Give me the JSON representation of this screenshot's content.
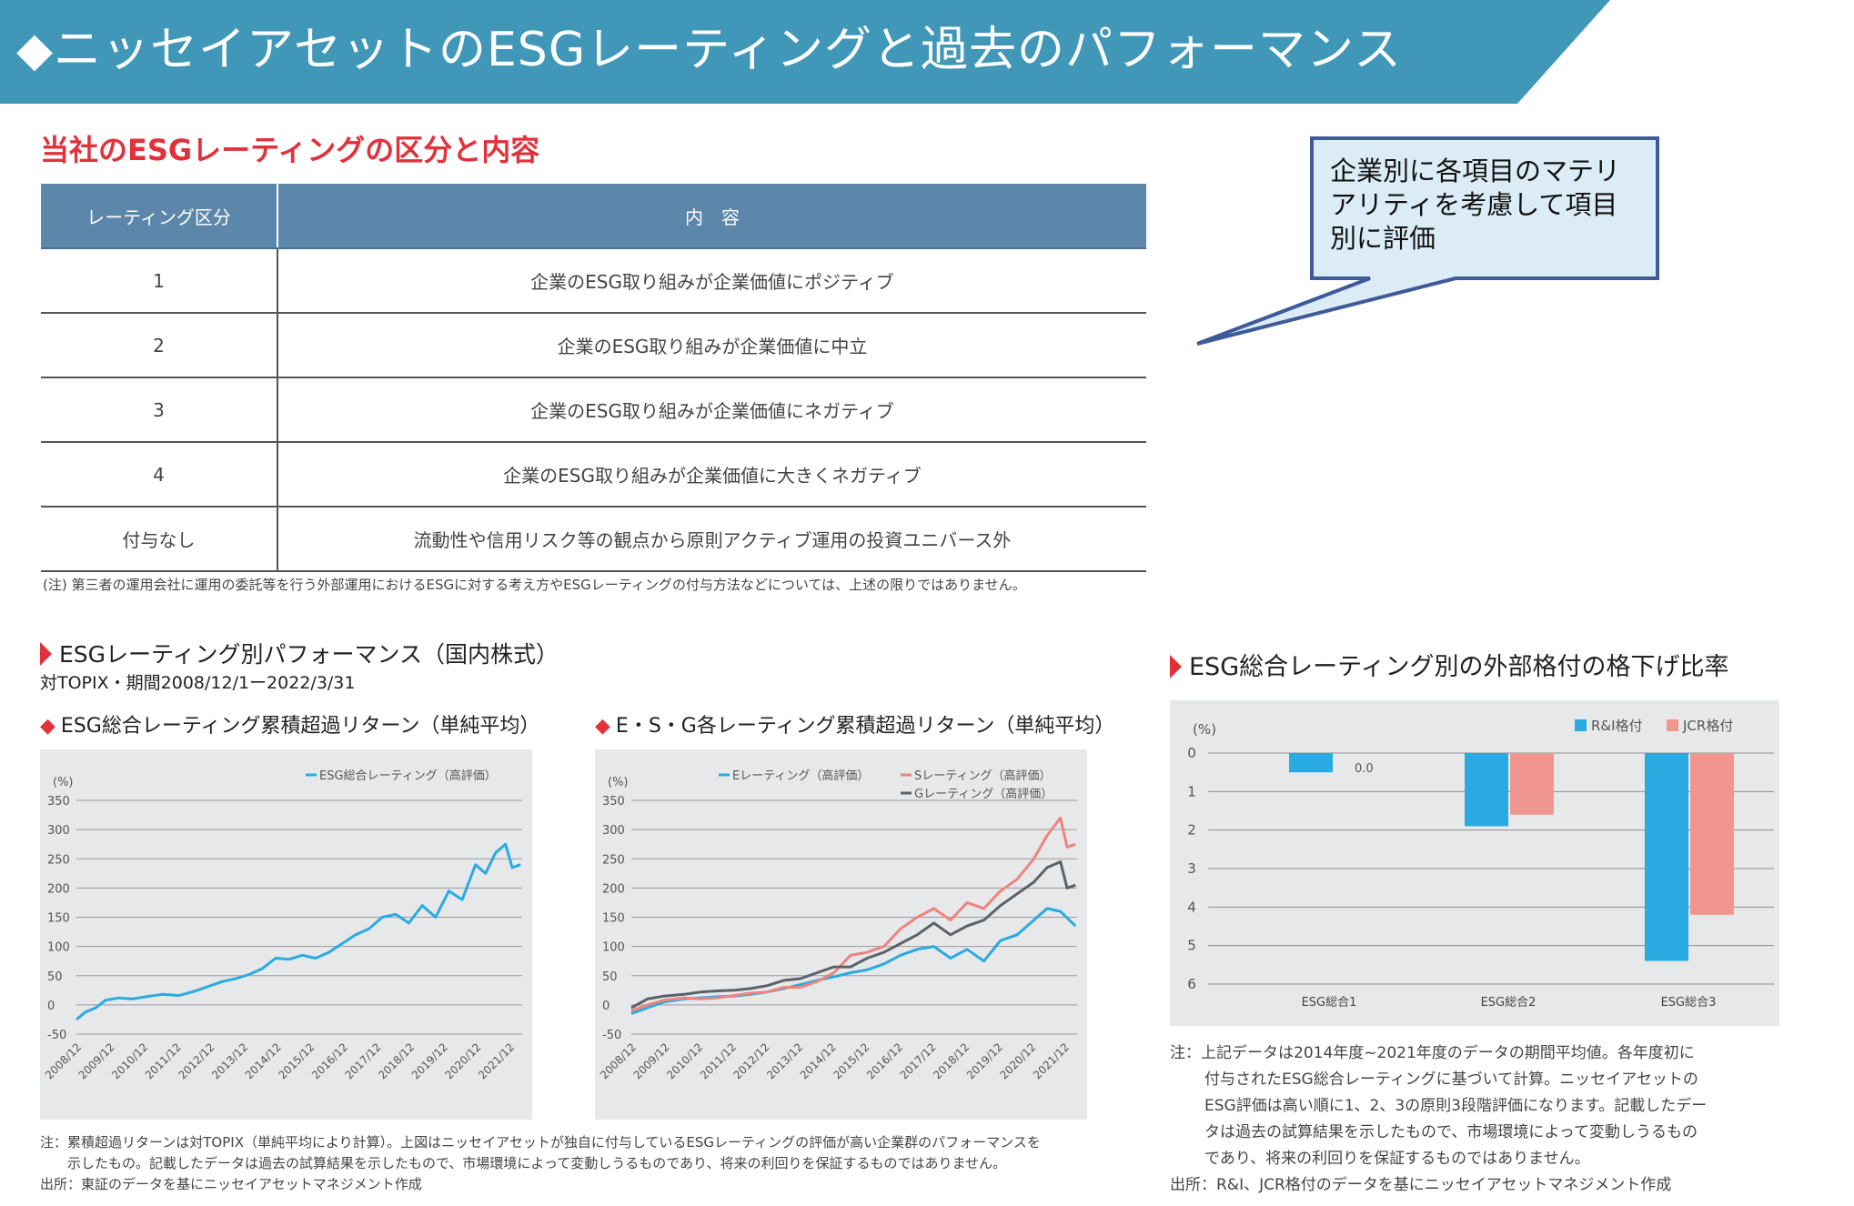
{
  "header": {
    "title": "◆ニッセイアセットのESGレーティングと過去のパフォーマンス"
  },
  "section_rating": {
    "title": "当社のESGレーティングの区分と内容",
    "table": {
      "headers": [
        "レーティング区分",
        "内　容"
      ],
      "rows": [
        [
          "1",
          "企業のESG取り組みが企業価値にポジティブ"
        ],
        [
          "2",
          "企業のESG取り組みが企業価値に中立"
        ],
        [
          "3",
          "企業のESG取り組みが企業価値にネガティブ"
        ],
        [
          "4",
          "企業のESG取り組みが企業価値に大きくネガティブ"
        ],
        [
          "付与なし",
          "流動性や信用リスク等の観点から原則アクティブ運用の投資ユニバース外"
        ]
      ]
    },
    "note": "(注) 第三者の運用会社に運用の委託等を行う外部運用におけるESGに対する考え方やESGレーティングの付与方法などについては、上述の限りではありません。"
  },
  "callout": {
    "text": "企業別に各項目のマテリ\nアリティを考慮して項目\n別に評価"
  },
  "performance": {
    "title": "ESGレーティング別パフォーマンス（国内株式）",
    "subtitle": "対TOPIX・期間2008/12/1ー2022/3/31",
    "chart1_title": "ESG総合レーティング累積超過リターン（単純平均）",
    "chart2_title": "E・S・G各レーティング累積超過リターン（単純平均）",
    "note_line1": "注：累積超過リターンは対TOPIX（単純平均により計算）。上図はニッセイアセットが独自に付与しているESGレーティングの評価が高い企業群のパフォーマンスを",
    "note_line2": "示したもの。記載したデータは過去の試算結果を示したもので、市場環境によって変動しうるものであり、将来の利回りを保証するものではありません。",
    "source": "出所：東証のデータを基にニッセイアセットマネジメント作成"
  },
  "downgrade": {
    "title": "ESG総合レーティング別の外部格付の格下げ比率",
    "note_lines": [
      "注：上記データは2014年度~2021年度のデータの期間平均値。各年度初に",
      "付与されたESG総合レーティングに基づいて計算。ニッセイアセットの",
      "ESG評価は高い順に1、2、3の原則3段階評価になります。記載したデー",
      "タは過去の試算結果を示したもので、市場環境によって変動しうるもの",
      "であり、将来の利回りを保証するものではありません。"
    ],
    "source": "出所：R&I、JCR格付のデータを基にニッセイアセットマネジメント作成"
  },
  "chart_data": [
    {
      "type": "line",
      "title": "ESG総合レーティング累積超過リターン（単純平均）",
      "ylabel": "(%)",
      "ylim": [
        -50,
        350
      ],
      "yticks": [
        "350",
        "300",
        "250",
        "200",
        "150",
        "100",
        "50",
        "0",
        "-50"
      ],
      "categories": [
        "2008/12",
        "2009/12",
        "2010/12",
        "2011/12",
        "2012/12",
        "2013/12",
        "2014/12",
        "2015/12",
        "2016/12",
        "2017/12",
        "2018/12",
        "2019/12",
        "2020/12",
        "2021/12"
      ],
      "series": [
        {
          "name": "ESG総合レーティング（高評価）",
          "color": "#29abe2",
          "x": [
            2008.92,
            2009.2,
            2009.5,
            2009.8,
            2010.2,
            2010.6,
            2011.0,
            2011.5,
            2012.0,
            2012.5,
            2012.9,
            2013.3,
            2013.7,
            2014.1,
            2014.5,
            2014.9,
            2015.3,
            2015.7,
            2016.1,
            2016.5,
            2016.9,
            2017.3,
            2017.7,
            2018.1,
            2018.5,
            2018.9,
            2019.3,
            2019.7,
            2020.1,
            2020.5,
            2020.9,
            2021.2,
            2021.5,
            2021.8,
            2022.0,
            2022.25
          ],
          "values": [
            -25,
            -12,
            -5,
            8,
            12,
            10,
            14,
            18,
            16,
            24,
            32,
            40,
            45,
            52,
            62,
            80,
            78,
            85,
            80,
            90,
            105,
            120,
            130,
            150,
            155,
            140,
            170,
            150,
            195,
            180,
            240,
            225,
            260,
            275,
            235,
            240
          ]
        }
      ]
    },
    {
      "type": "line",
      "title": "E・S・G各レーティング累積超過リターン（単純平均）",
      "ylabel": "(%)",
      "ylim": [
        -50,
        350
      ],
      "yticks": [
        "350",
        "300",
        "250",
        "200",
        "150",
        "100",
        "50",
        "0",
        "-50"
      ],
      "categories": [
        "2008/12",
        "2009/12",
        "2010/12",
        "2011/12",
        "2012/12",
        "2013/12",
        "2014/12",
        "2015/12",
        "2016/12",
        "2017/12",
        "2018/12",
        "2019/12",
        "2020/12",
        "2021/12"
      ],
      "series": [
        {
          "name": "Eレーティング（高評価）",
          "color": "#29abe2",
          "x": [
            2008.92,
            2009.4,
            2009.9,
            2010.5,
            2011.0,
            2011.5,
            2012.0,
            2012.5,
            2013.0,
            2013.5,
            2014.0,
            2014.5,
            2015.0,
            2015.5,
            2016.0,
            2016.5,
            2017.0,
            2017.5,
            2018.0,
            2018.5,
            2019.0,
            2019.5,
            2020.0,
            2020.5,
            2021.0,
            2021.4,
            2021.8,
            2022.25
          ],
          "values": [
            -15,
            -5,
            5,
            10,
            12,
            14,
            15,
            18,
            22,
            28,
            35,
            42,
            48,
            55,
            60,
            70,
            85,
            95,
            100,
            80,
            95,
            75,
            110,
            120,
            145,
            165,
            160,
            135
          ]
        },
        {
          "name": "Sレーティング（高評価）",
          "color": "#f0837c",
          "x": [
            2008.92,
            2009.4,
            2009.9,
            2010.5,
            2011.0,
            2011.5,
            2012.0,
            2012.5,
            2013.0,
            2013.5,
            2014.0,
            2014.5,
            2015.0,
            2015.5,
            2016.0,
            2016.5,
            2017.0,
            2017.5,
            2018.0,
            2018.5,
            2019.0,
            2019.5,
            2020.0,
            2020.5,
            2021.0,
            2021.4,
            2021.8,
            2022.0,
            2022.25
          ],
          "values": [
            -10,
            0,
            8,
            12,
            10,
            12,
            16,
            20,
            22,
            30,
            30,
            40,
            55,
            85,
            90,
            100,
            130,
            150,
            165,
            145,
            175,
            165,
            195,
            215,
            250,
            290,
            320,
            270,
            275
          ]
        },
        {
          "name": "Gレーティング（高評価）",
          "color": "#5a6268",
          "x": [
            2008.92,
            2009.4,
            2009.9,
            2010.5,
            2011.0,
            2011.5,
            2012.0,
            2012.5,
            2013.0,
            2013.5,
            2014.0,
            2014.5,
            2015.0,
            2015.5,
            2016.0,
            2016.5,
            2017.0,
            2017.5,
            2018.0,
            2018.5,
            2019.0,
            2019.5,
            2020.0,
            2020.5,
            2021.0,
            2021.4,
            2021.8,
            2022.0,
            2022.25
          ],
          "values": [
            -5,
            10,
            15,
            18,
            22,
            24,
            25,
            28,
            33,
            42,
            45,
            55,
            65,
            65,
            80,
            90,
            105,
            120,
            140,
            120,
            135,
            145,
            170,
            190,
            210,
            235,
            245,
            200,
            205
          ]
        }
      ]
    },
    {
      "type": "bar",
      "title": "ESG総合レーティング別の外部格付の格下げ比率",
      "ylabel": "(%)",
      "ylim": [
        0,
        6
      ],
      "yticks": [
        "0",
        "1",
        "2",
        "3",
        "4",
        "5",
        "6"
      ],
      "categories": [
        "ESG総合1",
        "ESG総合2",
        "ESG総合3"
      ],
      "series": [
        {
          "name": "R&I格付",
          "color": "#29abe2",
          "values": [
            0.5,
            1.9,
            5.4
          ]
        },
        {
          "name": "JCR格付",
          "color": "#f0968f",
          "values": [
            null,
            1.6,
            4.2
          ]
        }
      ],
      "data_labels": [
        "0.0"
      ]
    }
  ]
}
